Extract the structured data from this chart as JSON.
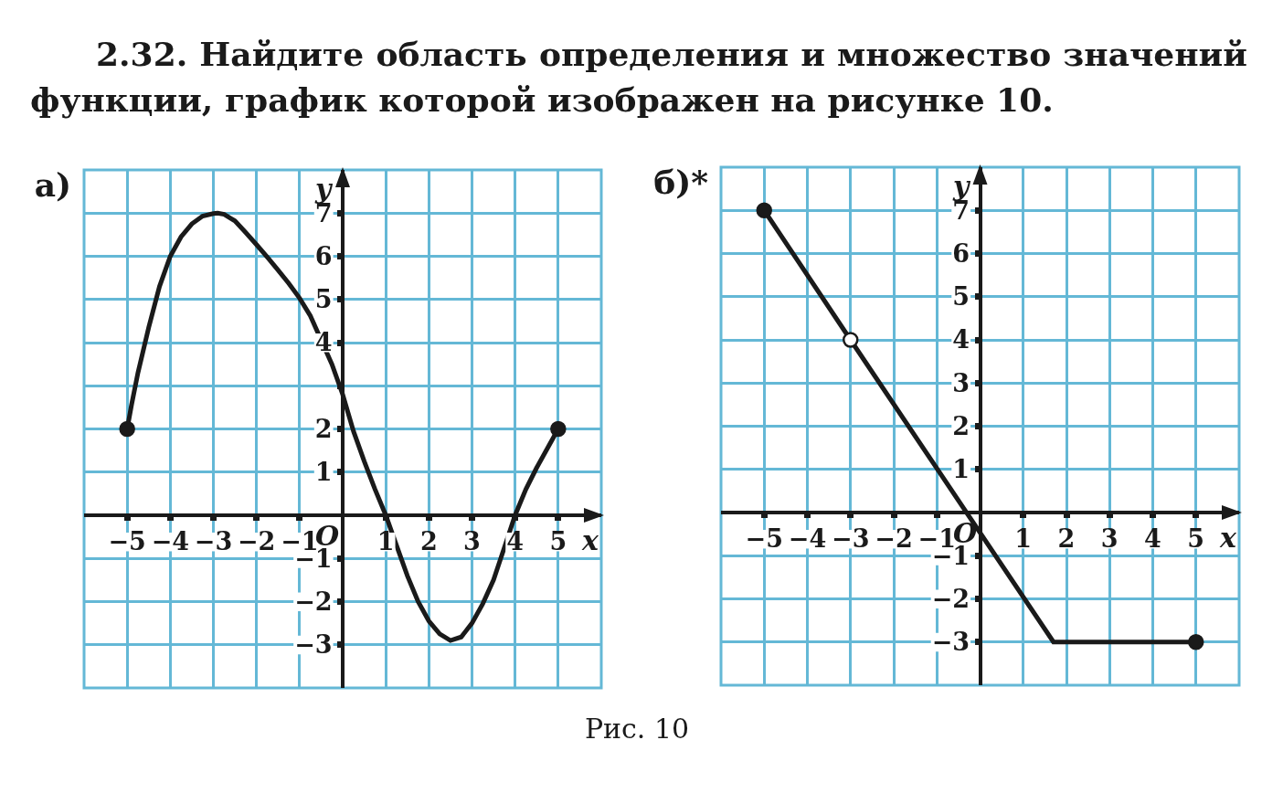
{
  "chart_data": [
    {
      "type": "other",
      "title": "2.32. Найдите область определения и множество значений функции, график которой изображен на рисунке 10.",
      "annotations": [
        "Рис. 10"
      ]
    },
    {
      "type": "line",
      "title": "а)",
      "xlabel": "x",
      "ylabel": "y",
      "xlim": [
        -6,
        6
      ],
      "ylim": [
        -4,
        8
      ],
      "xticks": [
        -5,
        -4,
        -3,
        -2,
        -1,
        1,
        2,
        3,
        4,
        5
      ],
      "yticks": [
        -3,
        -2,
        -1,
        1,
        2,
        {
          "value": 3,
          "label": null
        },
        4,
        5,
        6,
        7
      ],
      "grid": true,
      "annotations": [
        "O"
      ],
      "series": [
        {
          "type": "line",
          "color": "#1a1a1a",
          "marker": "none",
          "x": [
            -5,
            -4.9,
            -4.75,
            -4.5,
            -4.25,
            -4,
            -3.75,
            -3.5,
            -3.25,
            -3,
            -2.9,
            -2.75,
            -2.5,
            -2.25,
            -2,
            -1.75,
            -1.5,
            -1.25,
            -1,
            -0.75,
            -0.25,
            0,
            0.25,
            0.5,
            0.75,
            1,
            1.25,
            1.5,
            1.75,
            2,
            2.25,
            2.5,
            2.75,
            3,
            3.25,
            3.5,
            3.75,
            4,
            4.25,
            4.5,
            4.75,
            5
          ],
          "values": [
            2,
            2.55,
            3.3,
            4.35,
            5.3,
            6,
            6.45,
            6.75,
            6.93,
            6.99,
            7,
            6.97,
            6.82,
            6.55,
            6.27,
            5.98,
            5.68,
            5.37,
            5.03,
            4.62,
            3.5,
            2.8,
            1.95,
            1.25,
            0.6,
            0,
            -0.7,
            -1.4,
            -2,
            -2.45,
            -2.75,
            -2.9,
            -2.82,
            -2.5,
            -2.05,
            -1.5,
            -0.75,
            0,
            0.6,
            1.1,
            1.55,
            2
          ]
        },
        {
          "type": "scatter",
          "color": "#1a1a1a",
          "marker": "circle",
          "x": [
            -5,
            5
          ],
          "values": [
            2,
            2
          ]
        }
      ]
    },
    {
      "type": "line",
      "title": "б)*",
      "xlabel": "x",
      "ylabel": "y",
      "xlim": [
        -6,
        6
      ],
      "ylim": [
        -4,
        8
      ],
      "xticks": [
        -5,
        -4,
        -3,
        -2,
        -1,
        1,
        2,
        3,
        4,
        5
      ],
      "yticks": [
        -3,
        -2,
        -1,
        1,
        2,
        3,
        4,
        5,
        6,
        7
      ],
      "grid": true,
      "annotations": [
        "O"
      ],
      "series": [
        {
          "type": "line",
          "color": "#1a1a1a",
          "marker": "none",
          "x": [
            -5,
            -3,
            1.7,
            5
          ],
          "values": [
            7,
            4,
            -3,
            -3
          ]
        },
        {
          "type": "scatter",
          "color": "#1a1a1a",
          "marker": "circle",
          "x": [
            -5,
            5
          ],
          "values": [
            7,
            -3
          ]
        },
        {
          "type": "scatter",
          "color": "#ffffff",
          "marker": "circle",
          "x": [
            -3
          ],
          "values": [
            4
          ]
        }
      ]
    }
  ]
}
